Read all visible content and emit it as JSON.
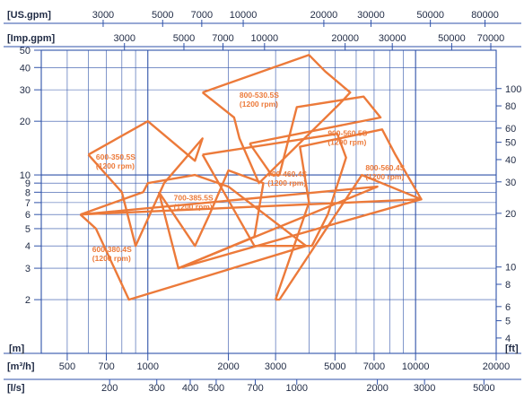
{
  "chart_data": {
    "type": "line",
    "title": "",
    "colors": {
      "curve": "#ec7a3a",
      "grid": "#2f52a8",
      "text": "#1f2a44"
    },
    "axes": {
      "x_main": {
        "unit": "[m³/h]",
        "scale": "log",
        "range": [
          400,
          20000
        ],
        "ticks": [
          {
            "v": 500,
            "label": "500"
          },
          {
            "v": 700,
            "label": "700"
          },
          {
            "v": 1000,
            "label": "1000"
          },
          {
            "v": 2000,
            "label": "2000"
          },
          {
            "v": 3000,
            "label": "3000"
          },
          {
            "v": 5000,
            "label": "5000"
          },
          {
            "v": 7000,
            "label": "7000"
          },
          {
            "v": 10000,
            "label": "10000"
          },
          {
            "v": 20000,
            "label": "20000"
          }
        ]
      },
      "x_top_usgpm": {
        "unit": "[US.gpm]",
        "ticks": [
          {
            "v": 681,
            "label": "3000"
          },
          {
            "v": 1136,
            "label": "5000"
          },
          {
            "v": 1590,
            "label": "7000"
          },
          {
            "v": 2271,
            "label": "10000"
          },
          {
            "v": 4543,
            "label": "20000"
          },
          {
            "v": 6814,
            "label": "30000"
          },
          {
            "v": 11356,
            "label": "50000"
          },
          {
            "v": 18170,
            "label": "80000"
          }
        ]
      },
      "x_top_impgpm": {
        "unit": "[Imp.gpm]",
        "ticks": [
          {
            "v": 818,
            "label": "3000"
          },
          {
            "v": 1364,
            "label": "5000"
          },
          {
            "v": 1909,
            "label": "7000"
          },
          {
            "v": 2728,
            "label": "10000"
          },
          {
            "v": 5456,
            "label": "20000"
          },
          {
            "v": 8184,
            "label": "30000"
          },
          {
            "v": 13640,
            "label": "50000"
          },
          {
            "v": 19096,
            "label": "70000"
          }
        ]
      },
      "x_bottom_ls": {
        "unit": "[l/s]",
        "ticks": [
          {
            "v": 720,
            "label": "200"
          },
          {
            "v": 1080,
            "label": "300"
          },
          {
            "v": 1440,
            "label": "400"
          },
          {
            "v": 1800,
            "label": "500"
          },
          {
            "v": 2520,
            "label": "700"
          },
          {
            "v": 3600,
            "label": "1000"
          },
          {
            "v": 7200,
            "label": "2000"
          },
          {
            "v": 10800,
            "label": "3000"
          },
          {
            "v": 18000,
            "label": "5000"
          }
        ]
      },
      "y_left": {
        "unit": "[m]",
        "scale": "log",
        "range": [
          1,
          50
        ],
        "ticks": [
          {
            "v": 2,
            "label": "2"
          },
          {
            "v": 3,
            "label": "3"
          },
          {
            "v": 4,
            "label": "4"
          },
          {
            "v": 5,
            "label": "5"
          },
          {
            "v": 6,
            "label": "6"
          },
          {
            "v": 7,
            "label": "7"
          },
          {
            "v": 8,
            "label": "8"
          },
          {
            "v": 9,
            "label": "9"
          },
          {
            "v": 10,
            "label": "10"
          },
          {
            "v": 20,
            "label": "20"
          },
          {
            "v": 30,
            "label": "30"
          },
          {
            "v": 40,
            "label": "40"
          },
          {
            "v": 50,
            "label": "50"
          }
        ]
      },
      "y_right": {
        "unit": "[ft]",
        "ticks": [
          {
            "v": 1.219,
            "label": "4"
          },
          {
            "v": 1.524,
            "label": "5"
          },
          {
            "v": 1.829,
            "label": "6"
          },
          {
            "v": 2.438,
            "label": "8"
          },
          {
            "v": 3.048,
            "label": "10"
          },
          {
            "v": 6.096,
            "label": "20"
          },
          {
            "v": 9.144,
            "label": "30"
          },
          {
            "v": 12.19,
            "label": "40"
          },
          {
            "v": 15.24,
            "label": "50"
          },
          {
            "v": 18.29,
            "label": "60"
          },
          {
            "v": 24.38,
            "label": "80"
          },
          {
            "v": 30.48,
            "label": "100"
          }
        ]
      }
    },
    "grid": true,
    "series": [
      {
        "name": "600-350.5S (1200 rpm)",
        "points": [
          [
            600,
            13
          ],
          [
            800,
            8
          ],
          [
            900,
            4
          ],
          [
            1150,
            9
          ],
          [
            1600,
            16
          ],
          [
            1500,
            12
          ],
          [
            1000,
            20
          ],
          [
            600,
            13
          ]
        ],
        "label_at": [
          640,
          12.2
        ]
      },
      {
        "name": "600-380.4S (1200 rpm)",
        "points": [
          [
            560,
            6
          ],
          [
            640,
            5
          ],
          [
            850,
            2
          ],
          [
            3900,
            4
          ],
          [
            2000,
            8.6
          ],
          [
            1500,
            10
          ],
          [
            1000,
            9
          ],
          [
            960,
            8
          ],
          [
            560,
            6
          ]
        ],
        "label_at": [
          620,
          3.7
        ]
      },
      {
        "name": "700-385.5S (1200 rpm)",
        "points": [
          [
            1100,
            8
          ],
          [
            1300,
            3
          ],
          [
            2500,
            4.5
          ],
          [
            2700,
            9
          ],
          [
            2000,
            10.6
          ],
          [
            1700,
            6
          ],
          [
            1500,
            4
          ],
          [
            1100,
            8
          ]
        ],
        "label_at": [
          1250,
          7.2
        ]
      },
      {
        "name": "700-460.4S (1200 rpm)",
        "points": [
          [
            1600,
            13
          ],
          [
            2500,
            4
          ],
          [
            4100,
            4
          ],
          [
            4700,
            6
          ],
          [
            5500,
            12.5
          ],
          [
            5100,
            17
          ],
          [
            1600,
            13
          ]
        ],
        "label_at": [
          2800,
          9.8
        ]
      },
      {
        "name": "800-530.5S (1200 rpm)",
        "points": [
          [
            1600,
            29
          ],
          [
            2100,
            21
          ],
          [
            2200,
            16
          ],
          [
            2600,
            9
          ],
          [
            5200,
            25
          ],
          [
            5700,
            29
          ],
          [
            4600,
            38
          ],
          [
            4000,
            47
          ],
          [
            1600,
            29
          ]
        ],
        "label_at": [
          2200,
          27
        ]
      },
      {
        "name": "900-560.5S (1200 rpm)",
        "points": [
          [
            2400,
            15
          ],
          [
            2900,
            10
          ],
          [
            3100,
            10
          ],
          [
            3600,
            24
          ],
          [
            6400,
            27.5
          ],
          [
            7400,
            21
          ],
          [
            2400,
            15
          ]
        ],
        "label_at": [
          4700,
          16.6
        ]
      },
      {
        "name": "800-560.4S (1200 rpm)",
        "points": [
          [
            3000,
            2
          ],
          [
            3100,
            2
          ],
          [
            6300,
            10
          ],
          [
            10500,
            7.3
          ],
          [
            8400,
            13
          ],
          [
            7500,
            18
          ],
          [
            3700,
            14.4
          ],
          [
            4000,
            7
          ],
          [
            3000,
            2
          ]
        ],
        "label_at": [
          6500,
          10.6
        ]
      },
      {
        "name": "",
        "points": [
          [
            560,
            6
          ],
          [
            7200,
            8.6
          ],
          [
            1300,
            3
          ],
          [
            10500,
            7.3
          ],
          [
            560,
            6
          ]
        ]
      }
    ]
  }
}
